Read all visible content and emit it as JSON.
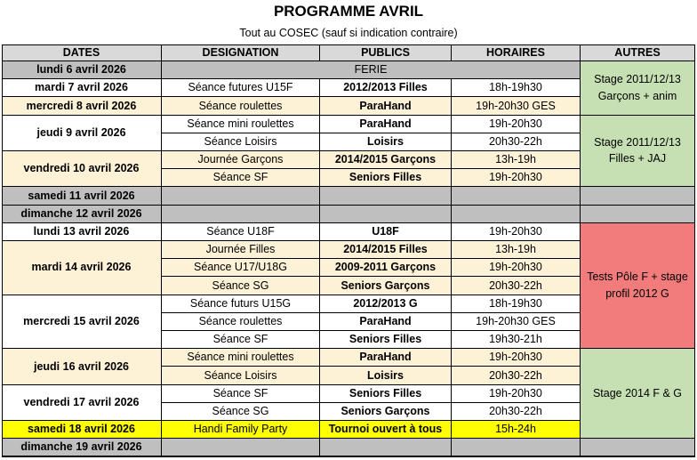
{
  "title": "PROGRAMME AVRIL",
  "subtitle": "Tout au COSEC (sauf si indication contraire)",
  "headers": [
    "DATES",
    "DESIGNATION",
    "PUBLICS",
    "HORAIRES",
    "AUTRES"
  ],
  "colors": {
    "header": "#d9d9d9",
    "grey": "#bfbfbf",
    "cream": "#fdf1d6",
    "white": "#ffffff",
    "yellow": "#ffff00",
    "green": "#c6e0b4",
    "red": "#f27c7c"
  },
  "dates": [
    {
      "label": "lundi 6 avril 2026",
      "rows": 1,
      "color": "grey"
    },
    {
      "label": "mardi 7 avril 2026",
      "rows": 1,
      "color": "white"
    },
    {
      "label": "mercredi 8 avril 2026",
      "rows": 1,
      "color": "cream"
    },
    {
      "label": "jeudi 9 avril 2026",
      "rows": 2,
      "color": "white"
    },
    {
      "label": "vendredi 10 avril 2026",
      "rows": 2,
      "color": "cream"
    },
    {
      "label": "samedi 11 avril 2026",
      "rows": 1,
      "color": "grey"
    },
    {
      "label": "dimanche 12 avril 2026",
      "rows": 1,
      "color": "grey"
    },
    {
      "label": "lundi 13 avril 2026",
      "rows": 1,
      "color": "white"
    },
    {
      "label": "mardi 14 avril 2026",
      "rows": 3,
      "color": "cream"
    },
    {
      "label": "mercredi 15 avril 2026",
      "rows": 3,
      "color": "white"
    },
    {
      "label": "jeudi 16 avril 2026",
      "rows": 2,
      "color": "cream"
    },
    {
      "label": "vendredi 17 avril 2026",
      "rows": 2,
      "color": "white"
    },
    {
      "label": "samedi 18 avril 2026",
      "rows": 1,
      "color": "yellow"
    },
    {
      "label": "dimanche 19 avril 2026",
      "rows": 1,
      "color": "grey"
    }
  ],
  "sessions": [
    {
      "designation": "",
      "public": "",
      "horaires": "",
      "color": "grey",
      "ferie": "FERIE"
    },
    {
      "designation": "Séance futures U15F",
      "public": "2012/2013 Filles",
      "horaires": "18h-19h30",
      "color": "white"
    },
    {
      "designation": "Séance roulettes",
      "public": "ParaHand",
      "horaires": "19h-20h30 GES",
      "color": "cream"
    },
    {
      "designation": "Séance mini roulettes",
      "public": "ParaHand",
      "horaires": "19h-20h30",
      "color": "white"
    },
    {
      "designation": "Séance Loisirs",
      "public": "Loisirs",
      "horaires": "20h30-22h",
      "color": "white"
    },
    {
      "designation": "Journée Garçons",
      "public": "2014/2015 Garçons",
      "horaires": "13h-19h",
      "color": "cream"
    },
    {
      "designation": "Séance SF",
      "public": "Seniors Filles",
      "horaires": "19h-20h30",
      "color": "cream"
    },
    {
      "designation": "",
      "public": "",
      "horaires": "",
      "color": "grey"
    },
    {
      "designation": "",
      "public": "",
      "horaires": "",
      "color": "grey"
    },
    {
      "designation": "Séance U18F",
      "public": "U18F",
      "horaires": "19h-20h30",
      "color": "white"
    },
    {
      "designation": "Journée Filles",
      "public": "2014/2015 Filles",
      "horaires": "13h-19h",
      "color": "cream"
    },
    {
      "designation": "Séance U17/U18G",
      "public": "2009-2011 Garçons",
      "horaires": "19h-20h30",
      "color": "cream"
    },
    {
      "designation": "Séance SG",
      "public": "Seniors Garçons",
      "horaires": "20h30-22h",
      "color": "cream"
    },
    {
      "designation": "Séance futurs U15G",
      "public": "2012/2013 G",
      "horaires": "18h-19h30",
      "color": "white"
    },
    {
      "designation": "Séance roulettes",
      "public": "ParaHand",
      "horaires": "19h-20h30 GES",
      "color": "white"
    },
    {
      "designation": "Séance SF",
      "public": "Seniors Filles",
      "horaires": "19h30-21h",
      "color": "white"
    },
    {
      "designation": "Séance mini roulettes",
      "public": "ParaHand",
      "horaires": "19h-20h30",
      "color": "cream"
    },
    {
      "designation": "Séance Loisirs",
      "public": "Loisirs",
      "horaires": "20h30-22h",
      "color": "cream"
    },
    {
      "designation": "Séance SF",
      "public": "Seniors Filles",
      "horaires": "19h-20h30",
      "color": "white"
    },
    {
      "designation": "Séance SG",
      "public": "Seniors Garçons",
      "horaires": "20h30-22h",
      "color": "white"
    },
    {
      "designation": "Handi Family Party",
      "public": "Tournoi ouvert à tous",
      "horaires": "15h-24h",
      "color": "yellow"
    },
    {
      "designation": "",
      "public": "",
      "horaires": "",
      "color": "grey"
    }
  ],
  "autres": [
    {
      "text": "Stage 2011/12/13 Garçons + anim",
      "rows": 3,
      "color": "green"
    },
    {
      "text": "Stage 2011/12/13 Filles + JAJ",
      "rows": 4,
      "color": "green"
    },
    {
      "text": "",
      "rows": 1,
      "color": "grey"
    },
    {
      "text": "",
      "rows": 1,
      "color": "grey"
    },
    {
      "text": "Tests Pôle F + stage profil 2012 G",
      "rows": 7,
      "color": "red"
    },
    {
      "text": "Stage 2014 F & G",
      "rows": 5,
      "color": "green"
    },
    {
      "text": "",
      "rows": 1,
      "color": "grey"
    }
  ]
}
